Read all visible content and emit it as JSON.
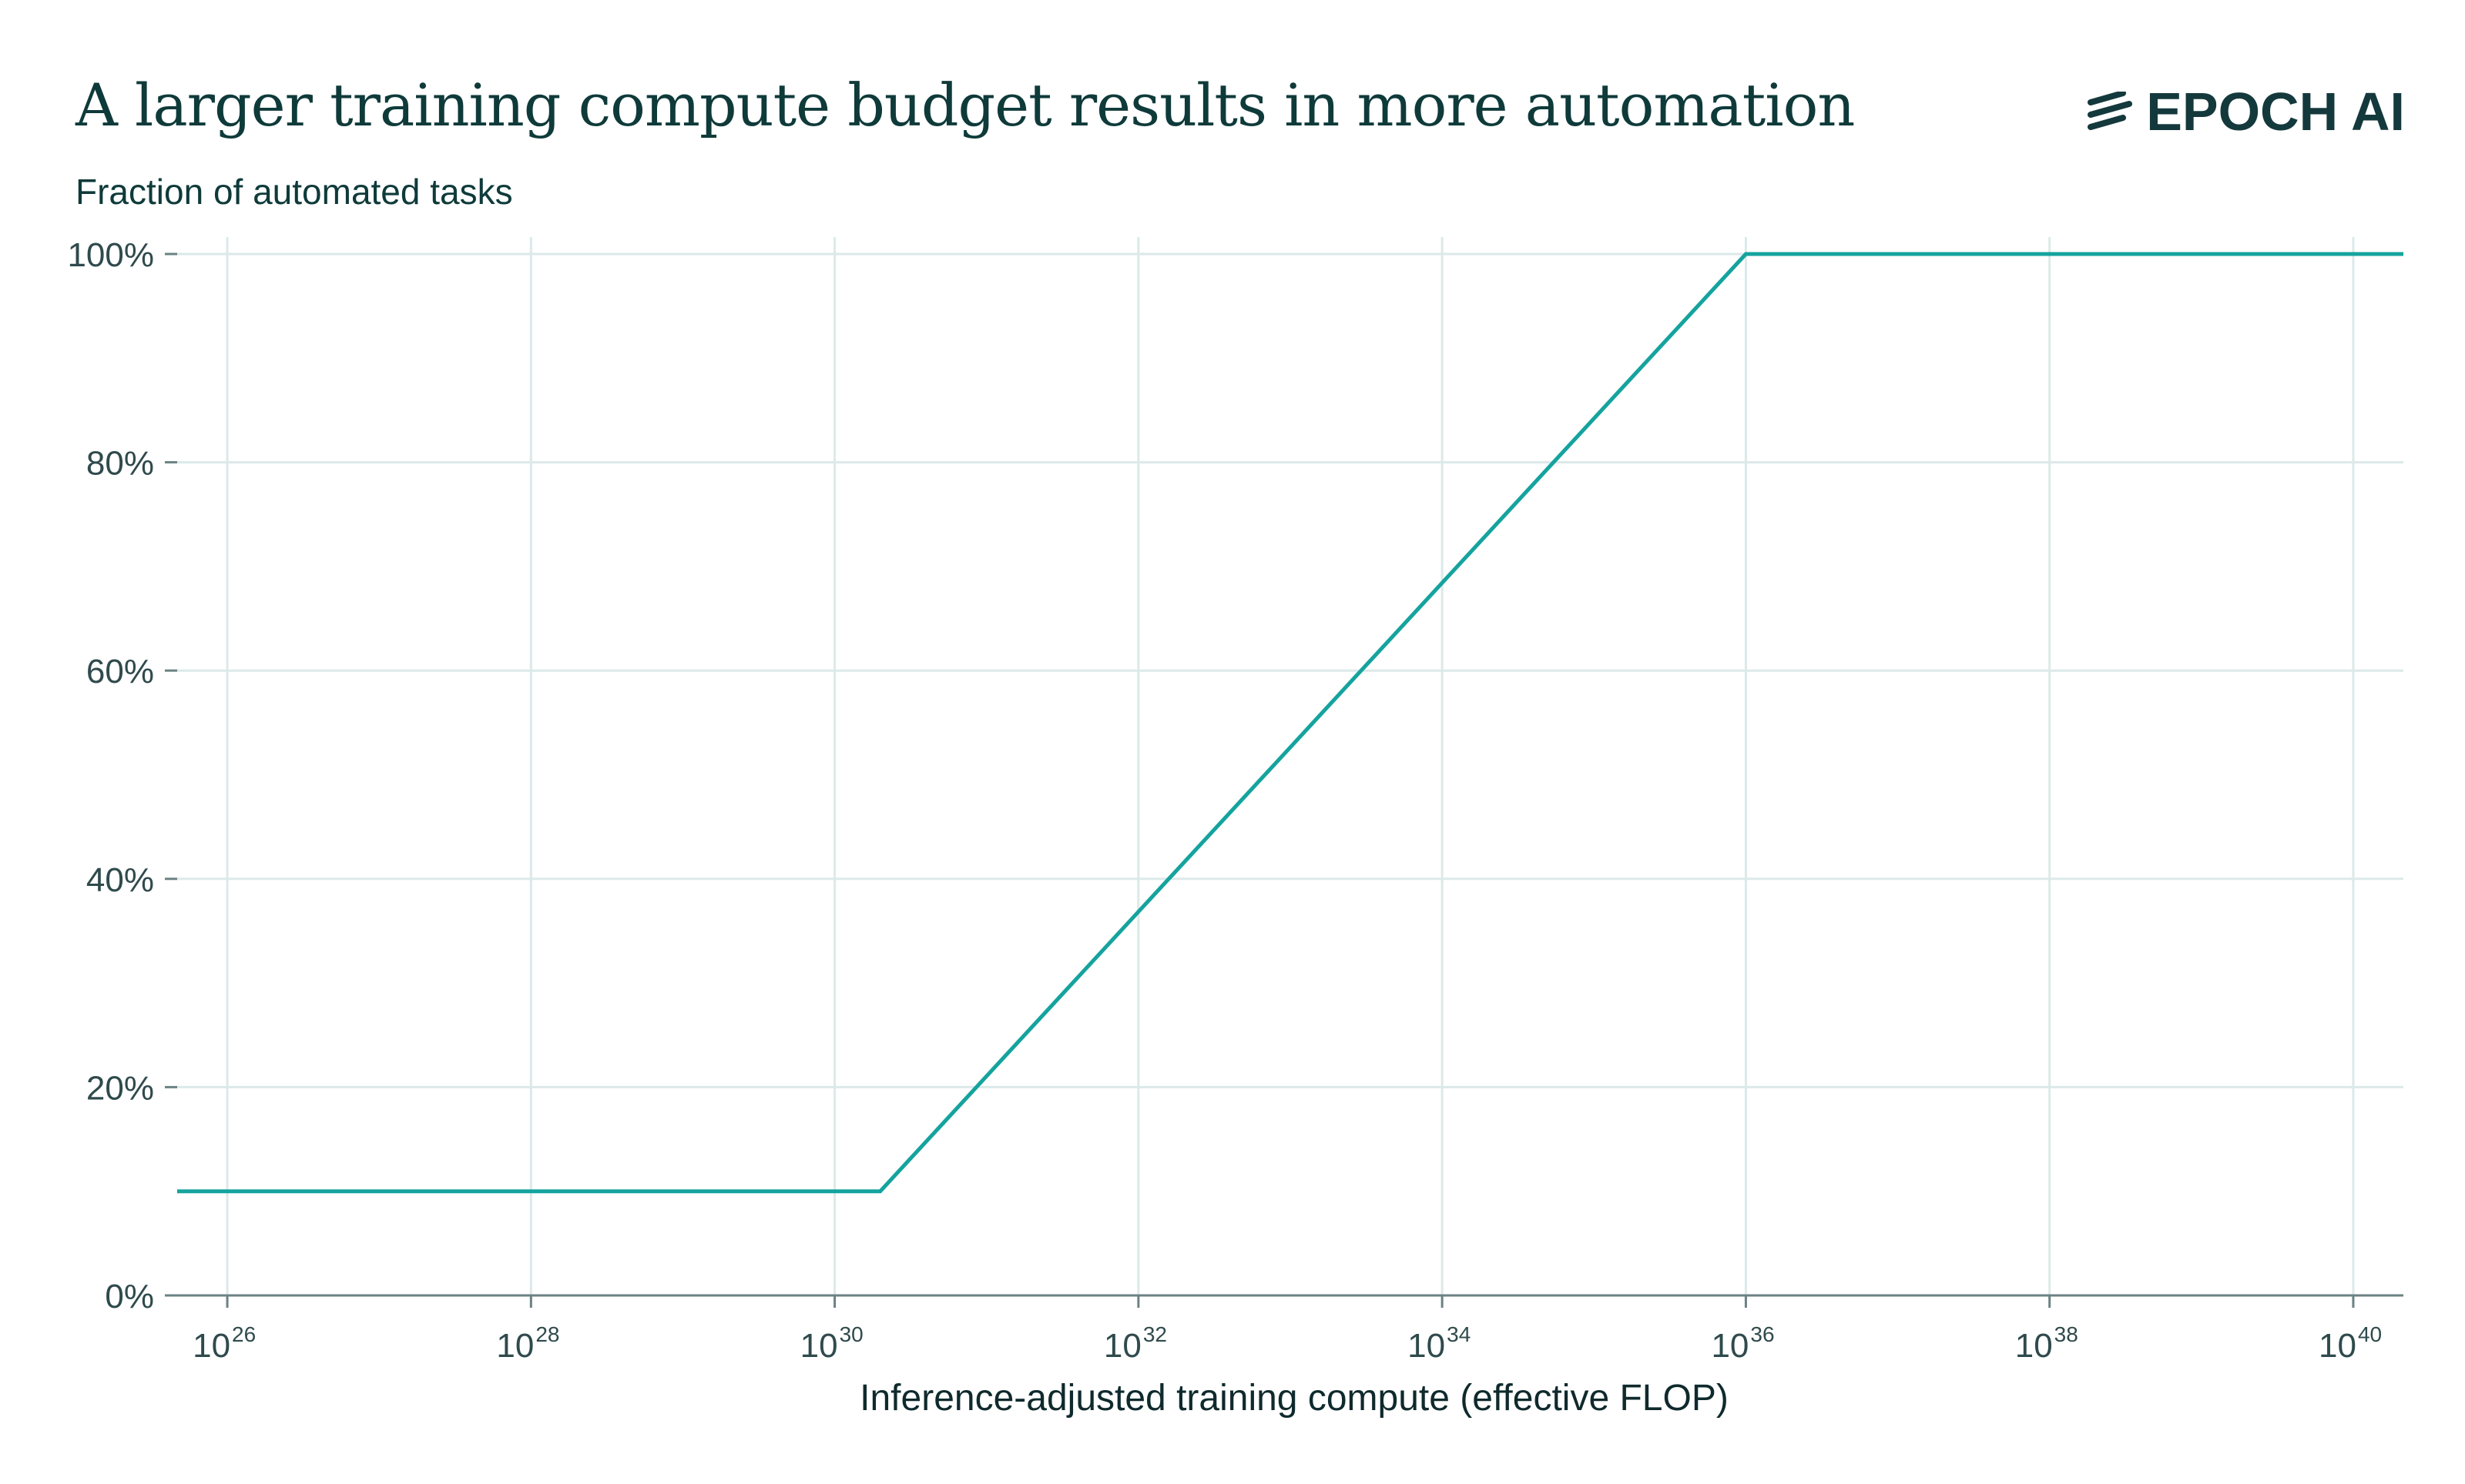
{
  "header": {
    "title": "A larger training compute budget results in more automation",
    "brand": "EPOCH AI"
  },
  "colors": {
    "line": "#15a39e",
    "grid": "#dce9e9",
    "axis": "#6b8283",
    "text": "#0f3a3a"
  },
  "chart_data": {
    "type": "line",
    "title": "A larger training compute budget results in more automation",
    "ylabel": "Fraction of automated tasks",
    "xlabel": "Inference-adjusted training compute (effective FLOP)",
    "x_scale": "log10",
    "xlim_exponent": [
      25.67,
      40.33
    ],
    "ylim": [
      0,
      100
    ],
    "x_ticks": [
      {
        "base": "10",
        "exp": "26",
        "value": 26
      },
      {
        "base": "10",
        "exp": "28",
        "value": 28
      },
      {
        "base": "10",
        "exp": "30",
        "value": 30
      },
      {
        "base": "10",
        "exp": "32",
        "value": 32
      },
      {
        "base": "10",
        "exp": "34",
        "value": 34
      },
      {
        "base": "10",
        "exp": "36",
        "value": 36
      },
      {
        "base": "10",
        "exp": "38",
        "value": 38
      },
      {
        "base": "10",
        "exp": "40",
        "value": 40
      }
    ],
    "y_ticks": [
      {
        "label": "0%",
        "value": 0
      },
      {
        "label": "20%",
        "value": 20
      },
      {
        "label": "40%",
        "value": 40
      },
      {
        "label": "60%",
        "value": 60
      },
      {
        "label": "80%",
        "value": 80
      },
      {
        "label": "100%",
        "value": 100
      }
    ],
    "grid": true,
    "series": [
      {
        "name": "Fraction of automated tasks",
        "x_exponent": [
          25.67,
          30.3,
          36.0,
          40.33
        ],
        "y": [
          10,
          10,
          100,
          100
        ]
      }
    ]
  }
}
